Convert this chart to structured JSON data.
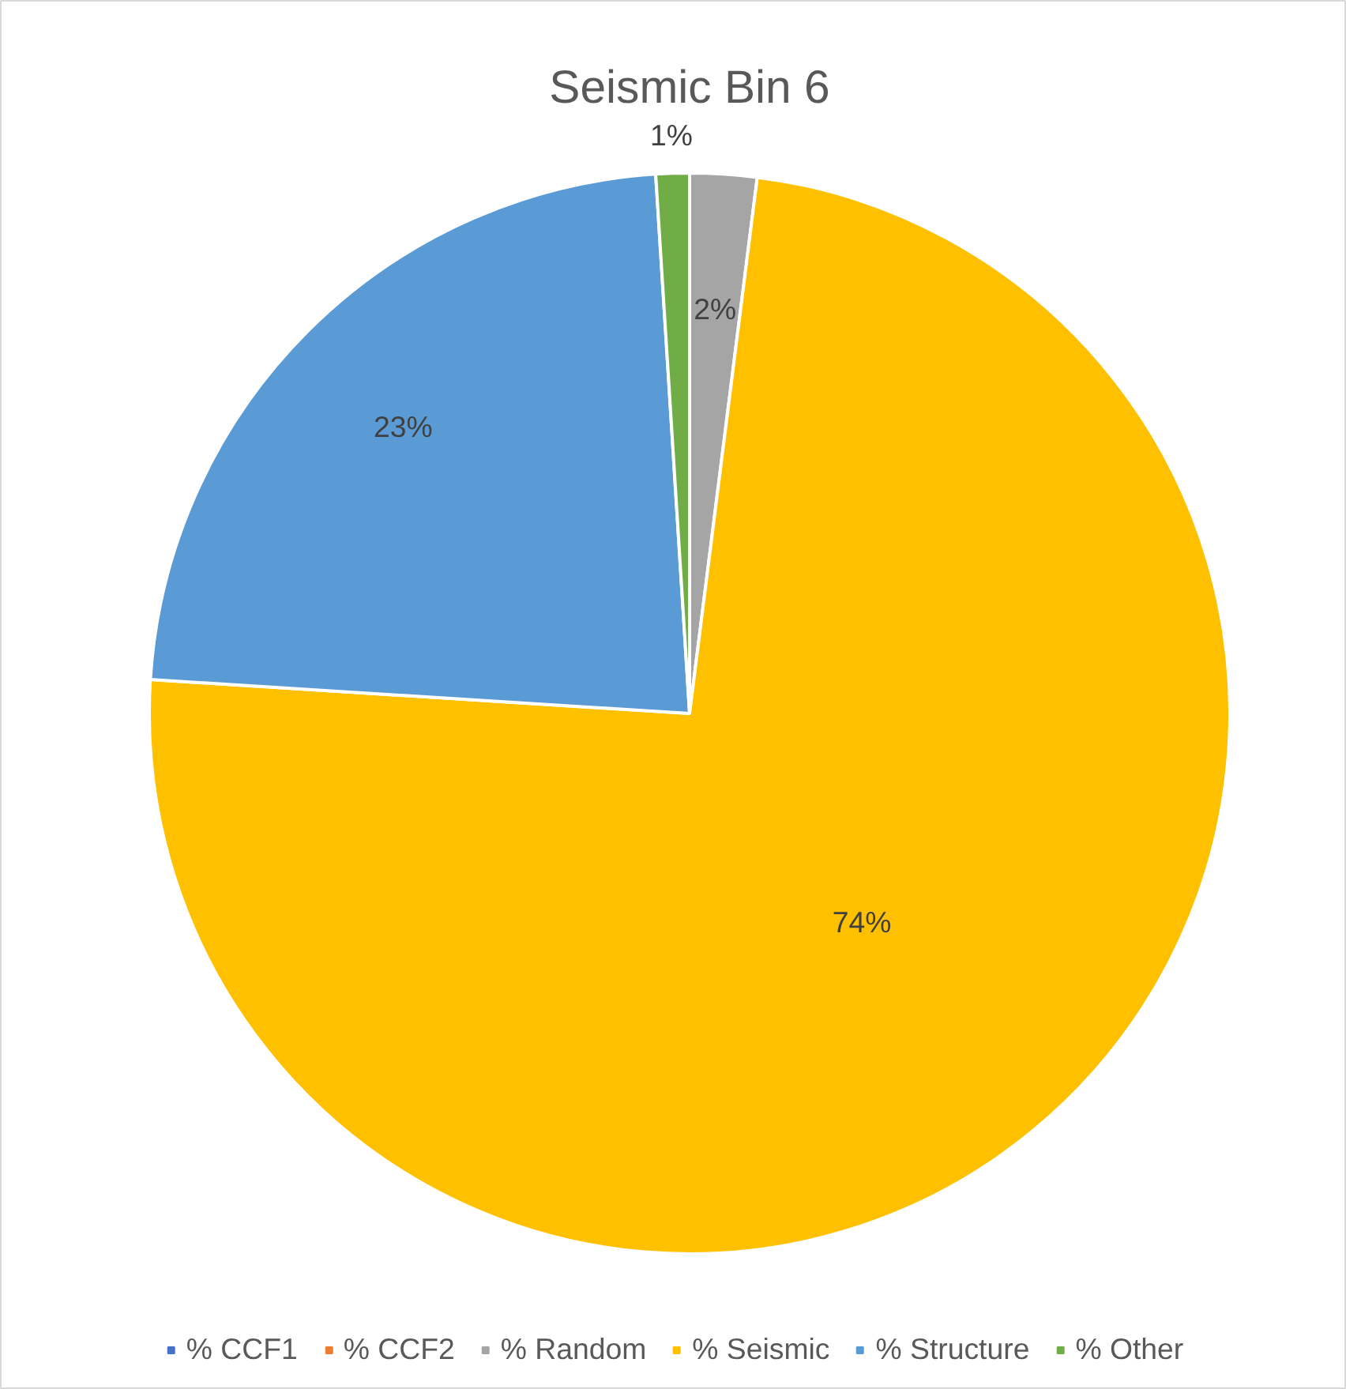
{
  "chart_data": {
    "type": "pie",
    "title": "Seismic Bin 6",
    "categories": [
      "% CCF1",
      "% CCF2",
      "% Random",
      "% Seismic",
      "% Structure",
      "% Other"
    ],
    "values": [
      0,
      0,
      2,
      74,
      23,
      1
    ],
    "colors": [
      "#4472c4",
      "#ed7d31",
      "#a5a5a5",
      "#ffc000",
      "#5b9bd5",
      "#70ad47"
    ],
    "value_labels": [
      null,
      null,
      "2%",
      "74%",
      "23%",
      "1%"
    ],
    "legend": "bottom"
  }
}
